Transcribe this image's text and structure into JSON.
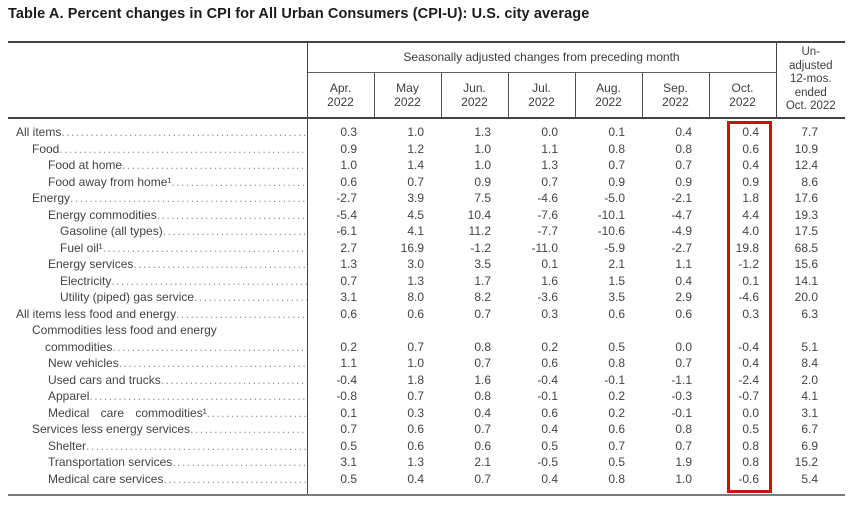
{
  "title": "Table A. Percent changes in CPI for All Urban Consumers (CPI-U): U.S. city average",
  "table": {
    "group_header": "Seasonally adjusted changes from preceding month",
    "months": [
      "Apr. 2022",
      "May 2022",
      "Jun. 2022",
      "Jul. 2022",
      "Aug. 2022",
      "Sep. 2022",
      "Oct. 2022"
    ],
    "unadjusted_header_lines": [
      "Un-",
      "adjusted",
      "12-mos.",
      "ended",
      "Oct. 2022"
    ],
    "highlight": {
      "column": "Oct. 2022",
      "color": "#cc0f0f"
    },
    "rows": [
      {
        "label": "All items",
        "indent": 0,
        "values": [
          "0.3",
          "1.0",
          "1.3",
          "0.0",
          "0.1",
          "0.4",
          "0.4"
        ],
        "annual": "7.7"
      },
      {
        "label": "Food",
        "indent": 1,
        "values": [
          "0.9",
          "1.2",
          "1.0",
          "1.1",
          "0.8",
          "0.8",
          "0.6"
        ],
        "annual": "10.9"
      },
      {
        "label": "Food at home",
        "indent": 2,
        "values": [
          "1.0",
          "1.4",
          "1.0",
          "1.3",
          "0.7",
          "0.7",
          "0.4"
        ],
        "annual": "12.4"
      },
      {
        "label": "Food away from home¹",
        "indent": 2,
        "values": [
          "0.6",
          "0.7",
          "0.9",
          "0.7",
          "0.9",
          "0.9",
          "0.9"
        ],
        "annual": "8.6"
      },
      {
        "label": "Energy",
        "indent": 1,
        "values": [
          "-2.7",
          "3.9",
          "7.5",
          "-4.6",
          "-5.0",
          "-2.1",
          "1.8"
        ],
        "annual": "17.6"
      },
      {
        "label": "Energy commodities",
        "indent": 2,
        "values": [
          "-5.4",
          "4.5",
          "10.4",
          "-7.6",
          "-10.1",
          "-4.7",
          "4.4"
        ],
        "annual": "19.3"
      },
      {
        "label": "Gasoline (all types)",
        "indent": 3,
        "values": [
          "-6.1",
          "4.1",
          "11.2",
          "-7.7",
          "-10.6",
          "-4.9",
          "4.0"
        ],
        "annual": "17.5"
      },
      {
        "label": "Fuel oil¹",
        "indent": 3,
        "values": [
          "2.7",
          "16.9",
          "-1.2",
          "-11.0",
          "-5.9",
          "-2.7",
          "19.8"
        ],
        "annual": "68.5"
      },
      {
        "label": "Energy services",
        "indent": 2,
        "values": [
          "1.3",
          "3.0",
          "3.5",
          "0.1",
          "2.1",
          "1.1",
          "-1.2"
        ],
        "annual": "15.6"
      },
      {
        "label": "Electricity",
        "indent": 3,
        "values": [
          "0.7",
          "1.3",
          "1.7",
          "1.6",
          "1.5",
          "0.4",
          "0.1"
        ],
        "annual": "14.1"
      },
      {
        "label": "Utility (piped) gas service",
        "indent": 3,
        "values": [
          "3.1",
          "8.0",
          "8.2",
          "-3.6",
          "3.5",
          "2.9",
          "-4.6"
        ],
        "annual": "20.0"
      },
      {
        "label": "All items less food and energy",
        "indent": 0,
        "values": [
          "0.6",
          "0.6",
          "0.7",
          "0.3",
          "0.6",
          "0.6",
          "0.3"
        ],
        "annual": "6.3"
      },
      {
        "label": "Commodities less food and energy",
        "label2": "commodities",
        "indent": 1,
        "values": [
          "0.2",
          "0.7",
          "0.8",
          "0.2",
          "0.5",
          "0.0",
          "-0.4"
        ],
        "annual": "5.1"
      },
      {
        "label": "New vehicles",
        "indent": 2,
        "values": [
          "1.1",
          "1.0",
          "0.7",
          "0.6",
          "0.8",
          "0.7",
          "0.4"
        ],
        "annual": "8.4"
      },
      {
        "label": "Used cars and trucks",
        "indent": 2,
        "values": [
          "-0.4",
          "1.8",
          "1.6",
          "-0.4",
          "-0.1",
          "-1.1",
          "-2.4"
        ],
        "annual": "2.0"
      },
      {
        "label": "Apparel",
        "indent": 2,
        "values": [
          "-0.8",
          "0.7",
          "0.8",
          "-0.1",
          "0.2",
          "-0.3",
          "-0.7"
        ],
        "annual": "4.1"
      },
      {
        "label": "Medical care commodities¹",
        "indent": 2,
        "justify": true,
        "values": [
          "0.1",
          "0.3",
          "0.4",
          "0.6",
          "0.2",
          "-0.1",
          "0.0"
        ],
        "annual": "3.1"
      },
      {
        "label": "Services less energy services",
        "indent": 1,
        "values": [
          "0.7",
          "0.6",
          "0.7",
          "0.4",
          "0.6",
          "0.8",
          "0.5"
        ],
        "annual": "6.7"
      },
      {
        "label": "Shelter",
        "indent": 2,
        "values": [
          "0.5",
          "0.6",
          "0.6",
          "0.5",
          "0.7",
          "0.7",
          "0.8"
        ],
        "annual": "6.9"
      },
      {
        "label": "Transportation services",
        "indent": 2,
        "values": [
          "3.1",
          "1.3",
          "2.1",
          "-0.5",
          "0.5",
          "1.9",
          "0.8"
        ],
        "annual": "15.2"
      },
      {
        "label": "Medical care services",
        "indent": 2,
        "values": [
          "0.5",
          "0.4",
          "0.7",
          "0.4",
          "0.8",
          "1.0",
          "-0.6"
        ],
        "annual": "5.4"
      }
    ]
  }
}
